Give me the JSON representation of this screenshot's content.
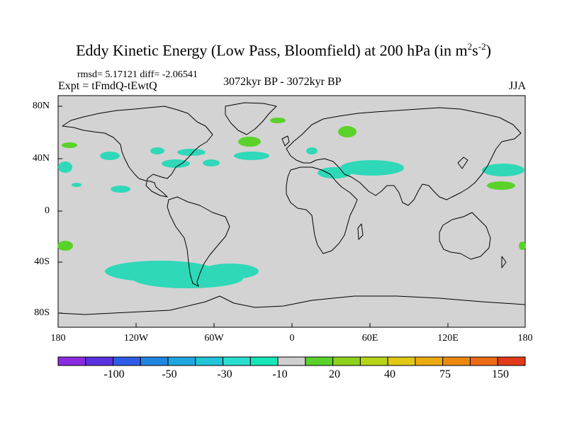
{
  "title_main": "Eddy Kinetic Energy (Low Pass, Bloomfield) at 200 hPa (in m",
  "title_sup1": "2",
  "title_mid": "s",
  "title_sup2": "-2",
  "title_end": ")",
  "stats": "rmsd= 5.17121 diff= -2.06541",
  "expt": "Expt = tFmdQ-tEwtQ",
  "period": "3072kyr BP - 3072kyr BP",
  "season": "JJA",
  "lat_ticks": [
    "80N",
    "40N",
    "0",
    "40S",
    "80S"
  ],
  "lon_ticks": [
    "180",
    "120W",
    "60W",
    "0",
    "60E",
    "120E",
    "180"
  ],
  "colorbar": {
    "colors": [
      "#8a2be2",
      "#5a32e0",
      "#2f5ce6",
      "#1f86e0",
      "#20a6e0",
      "#22c4d8",
      "#2adfd0",
      "#16e6b8",
      "#cfcfcf",
      "#5ad22a",
      "#8ed21c",
      "#b8d418",
      "#e0c814",
      "#ecac10",
      "#ec8a10",
      "#ec6a12",
      "#e23a18"
    ],
    "labels": [
      "-100",
      "-50",
      "-30",
      "-10",
      "20",
      "40",
      "75",
      "150"
    ]
  },
  "map_colors": {
    "background": "#d3d3d3",
    "negative": "#2fd8b8",
    "positive": "#5ad22a",
    "coast": "#000000"
  }
}
